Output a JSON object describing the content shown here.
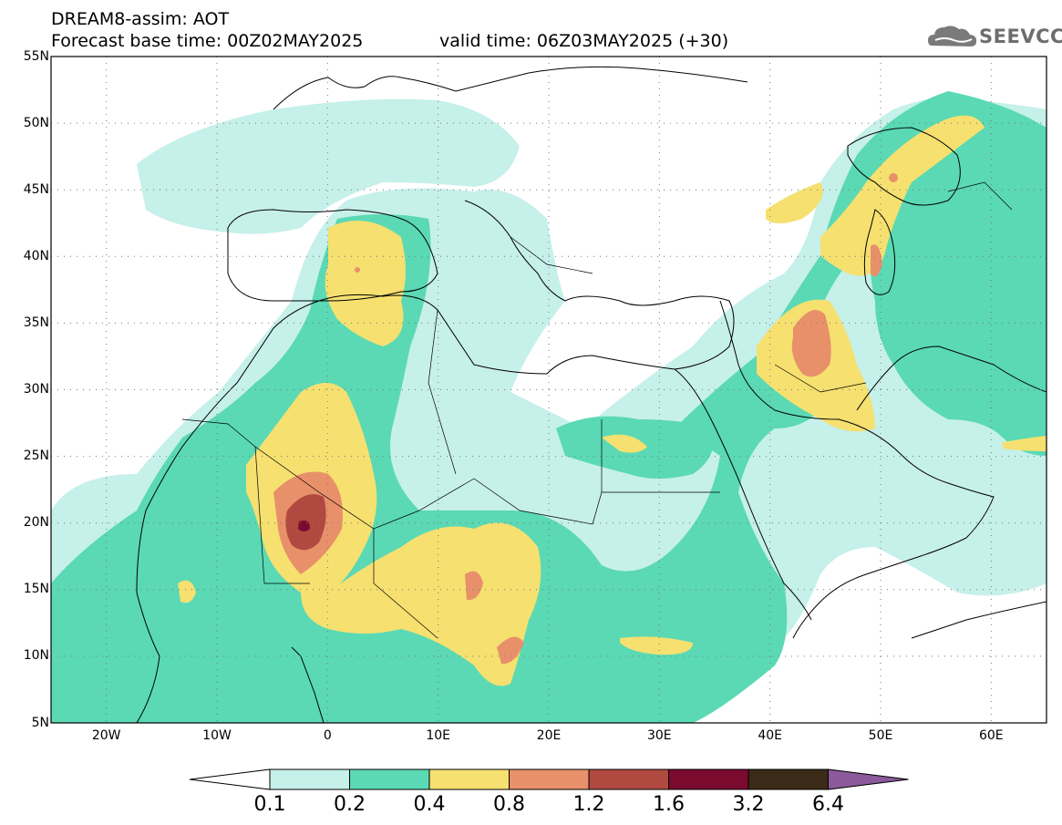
{
  "header": {
    "title_line1": "DREAM8-assim: AOT",
    "title_line2": "Forecast base time: 00Z02MAY2025",
    "valid_time": "valid time: 06Z03MAY2025 (+30)",
    "logo_text": "SEEVCCC",
    "logo_icon": "cloud-icon"
  },
  "map": {
    "lat_labels": [
      "55N",
      "50N",
      "45N",
      "40N",
      "35N",
      "30N",
      "25N",
      "20N",
      "15N",
      "10N",
      "5N"
    ],
    "lon_labels": [
      "20W",
      "10W",
      "0",
      "10E",
      "20E",
      "30E",
      "40E",
      "50E",
      "60E"
    ],
    "lon_range": [
      -25,
      65
    ],
    "lat_range": [
      5,
      55
    ],
    "grid": "dotted"
  },
  "colorbar": {
    "labels": [
      "0.1",
      "0.2",
      "0.4",
      "0.8",
      "1.2",
      "1.6",
      "3.2",
      "6.4"
    ],
    "colors": [
      "#ffffff",
      "#c6f0ea",
      "#5ad9b4",
      "#f5e070",
      "#e8906a",
      "#b04a40",
      "#7a0a2e",
      "#3a2a18",
      "#8a5a9a"
    ]
  }
}
